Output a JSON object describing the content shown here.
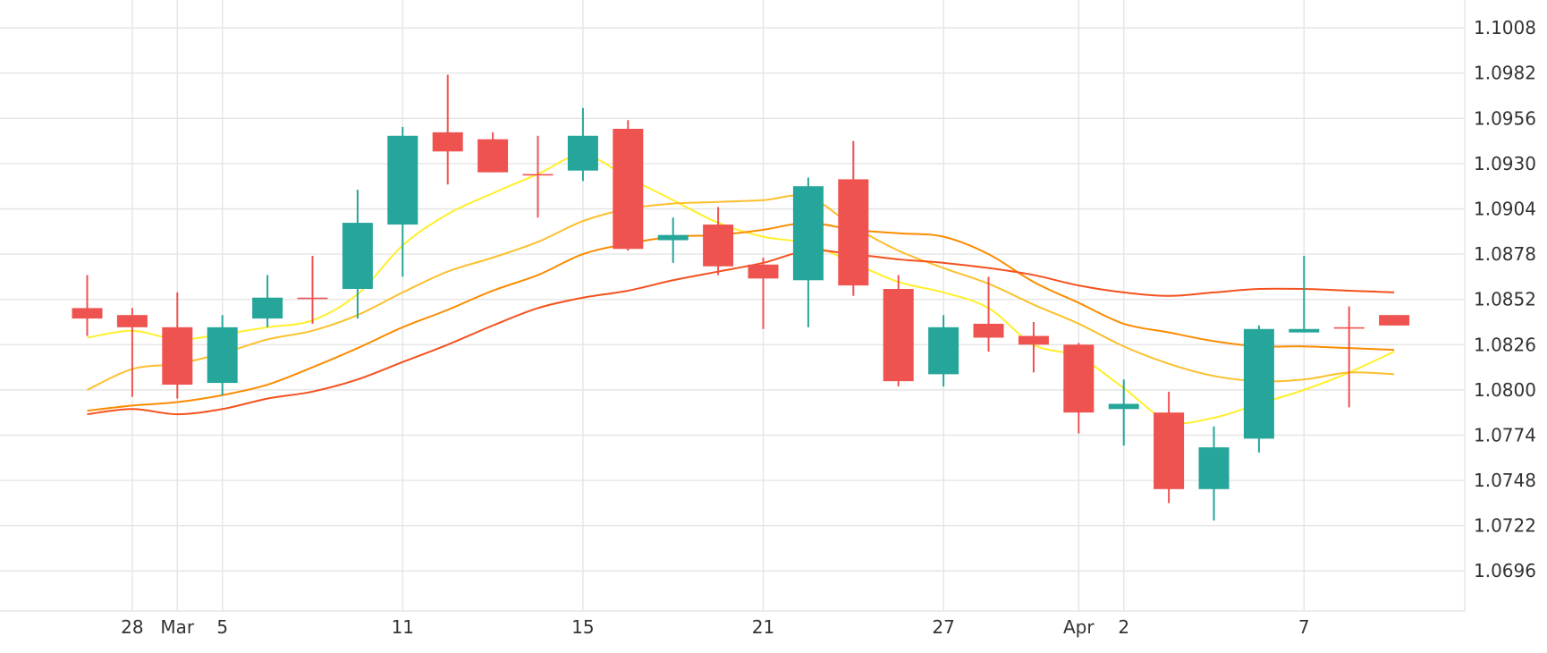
{
  "chart_data": {
    "type": "candlestick",
    "title": "",
    "xlabel": "",
    "ylabel": "",
    "ylim": [
      1.0673,
      1.1024
    ],
    "y_ticks": [
      1.0696,
      1.0722,
      1.0748,
      1.0774,
      1.08,
      1.0826,
      1.0852,
      1.0878,
      1.0904,
      1.093,
      1.0956,
      1.0982,
      1.1008
    ],
    "y_tick_labels": [
      "1.0696",
      "1.0722",
      "1.0748",
      "1.0774",
      "1.0800",
      "1.0826",
      "1.0852",
      "1.0878",
      "1.0904",
      "1.0930",
      "1.0956",
      "1.0982",
      "1.1008"
    ],
    "x_ticks": [
      {
        "index": 1,
        "label": "28"
      },
      {
        "index": 2,
        "label": "Mar"
      },
      {
        "index": 3,
        "label": "5"
      },
      {
        "index": 7,
        "label": "11"
      },
      {
        "index": 11,
        "label": "15"
      },
      {
        "index": 15,
        "label": "21"
      },
      {
        "index": 19,
        "label": "27"
      },
      {
        "index": 22,
        "label": "Apr"
      },
      {
        "index": 23,
        "label": "2"
      },
      {
        "index": 27,
        "label": "7"
      }
    ],
    "grid": true,
    "legend": "none",
    "colors": {
      "up": "#26a69a",
      "down": "#ef5350",
      "ma": [
        "#ffef2b",
        "#fbc02d",
        "#fb8c00",
        "#f4511e"
      ]
    },
    "candles": [
      {
        "o": 1.0847,
        "h": 1.0866,
        "l": 1.0831,
        "c": 1.0841
      },
      {
        "o": 1.0843,
        "h": 1.0847,
        "l": 1.0796,
        "c": 1.0836
      },
      {
        "o": 1.0836,
        "h": 1.0856,
        "l": 1.0795,
        "c": 1.0803
      },
      {
        "o": 1.0804,
        "h": 1.0843,
        "l": 1.0797,
        "c": 1.0836
      },
      {
        "o": 1.0841,
        "h": 1.0866,
        "l": 1.0836,
        "c": 1.0853
      },
      {
        "o": 1.0853,
        "h": 1.0877,
        "l": 1.0838,
        "c": 1.0853
      },
      {
        "o": 1.0858,
        "h": 1.0915,
        "l": 1.0841,
        "c": 1.0896
      },
      {
        "o": 1.0895,
        "h": 1.0951,
        "l": 1.0865,
        "c": 1.0946
      },
      {
        "o": 1.0948,
        "h": 1.0981,
        "l": 1.0918,
        "c": 1.0937
      },
      {
        "o": 1.0944,
        "h": 1.0948,
        "l": 1.0925,
        "c": 1.0925
      },
      {
        "o": 1.0924,
        "h": 1.0946,
        "l": 1.0899,
        "c": 1.0924
      },
      {
        "o": 1.0926,
        "h": 1.0962,
        "l": 1.092,
        "c": 1.0946
      },
      {
        "o": 1.095,
        "h": 1.0955,
        "l": 1.088,
        "c": 1.0881
      },
      {
        "o": 1.0886,
        "h": 1.0899,
        "l": 1.0873,
        "c": 1.0889
      },
      {
        "o": 1.0895,
        "h": 1.0905,
        "l": 1.0866,
        "c": 1.0871
      },
      {
        "o": 1.0872,
        "h": 1.0876,
        "l": 1.0835,
        "c": 1.0864
      },
      {
        "o": 1.0863,
        "h": 1.0922,
        "l": 1.0836,
        "c": 1.0917
      },
      {
        "o": 1.0921,
        "h": 1.0943,
        "l": 1.0854,
        "c": 1.086
      },
      {
        "o": 1.0858,
        "h": 1.0866,
        "l": 1.0802,
        "c": 1.0805
      },
      {
        "o": 1.0809,
        "h": 1.0843,
        "l": 1.0802,
        "c": 1.0836
      },
      {
        "o": 1.0838,
        "h": 1.0865,
        "l": 1.0822,
        "c": 1.083
      },
      {
        "o": 1.0831,
        "h": 1.0839,
        "l": 1.081,
        "c": 1.0826
      },
      {
        "o": 1.0826,
        "h": 1.0827,
        "l": 1.0775,
        "c": 1.0787
      },
      {
        "o": 1.0789,
        "h": 1.0806,
        "l": 1.0768,
        "c": 1.0792
      },
      {
        "o": 1.0787,
        "h": 1.0799,
        "l": 1.0735,
        "c": 1.0743
      },
      {
        "o": 1.0743,
        "h": 1.0779,
        "l": 1.0725,
        "c": 1.0767
      },
      {
        "o": 1.0772,
        "h": 1.0837,
        "l": 1.0764,
        "c": 1.0835
      },
      {
        "o": 1.0833,
        "h": 1.0877,
        "l": 1.0833,
        "c": 1.0835
      },
      {
        "o": 1.0836,
        "h": 1.0848,
        "l": 1.079,
        "c": 1.0836
      },
      {
        "o": 1.0843,
        "h": 1.0843,
        "l": 1.0837,
        "c": 1.0837
      }
    ],
    "moving_averages": [
      {
        "color": "#ffef2b",
        "values": [
          1.083,
          1.0834,
          1.0829,
          1.0832,
          1.0836,
          1.084,
          1.0855,
          1.0883,
          1.0901,
          1.0913,
          1.0924,
          1.0935,
          1.0922,
          1.0909,
          1.0896,
          1.0888,
          1.0884,
          1.0873,
          1.0862,
          1.0856,
          1.0847,
          1.0826,
          1.0819,
          1.0801,
          1.0782,
          1.0784,
          1.0792,
          1.08,
          1.081,
          1.0822
        ]
      },
      {
        "color": "#fbc02d",
        "values": [
          1.08,
          1.0812,
          1.0815,
          1.0821,
          1.0829,
          1.0834,
          1.0843,
          1.0856,
          1.0868,
          1.0876,
          1.0885,
          1.0897,
          1.0904,
          1.0907,
          1.0908,
          1.0909,
          1.0911,
          1.0894,
          1.088,
          1.087,
          1.0861,
          1.0849,
          1.0838,
          1.0825,
          1.0815,
          1.0808,
          1.0805,
          1.0806,
          1.081,
          1.0809
        ]
      },
      {
        "color": "#fb8c00",
        "values": [
          1.0788,
          1.0791,
          1.0793,
          1.0797,
          1.0803,
          1.0813,
          1.0824,
          1.0836,
          1.0846,
          1.0857,
          1.0866,
          1.0878,
          1.0884,
          1.0888,
          1.0889,
          1.0892,
          1.0896,
          1.0892,
          1.089,
          1.0888,
          1.0878,
          1.0862,
          1.085,
          1.0838,
          1.0833,
          1.0828,
          1.0825,
          1.0825,
          1.0824,
          1.0823
        ]
      },
      {
        "color": "#f4511e",
        "values": [
          1.0786,
          1.0789,
          1.0786,
          1.0789,
          1.0795,
          1.0799,
          1.0806,
          1.0816,
          1.0826,
          1.0837,
          1.0847,
          1.0853,
          1.0857,
          1.0863,
          1.0868,
          1.0873,
          1.088,
          1.0878,
          1.0875,
          1.0873,
          1.087,
          1.0866,
          1.086,
          1.0856,
          1.0854,
          1.0856,
          1.0858,
          1.0858,
          1.0857,
          1.0856
        ]
      }
    ]
  }
}
